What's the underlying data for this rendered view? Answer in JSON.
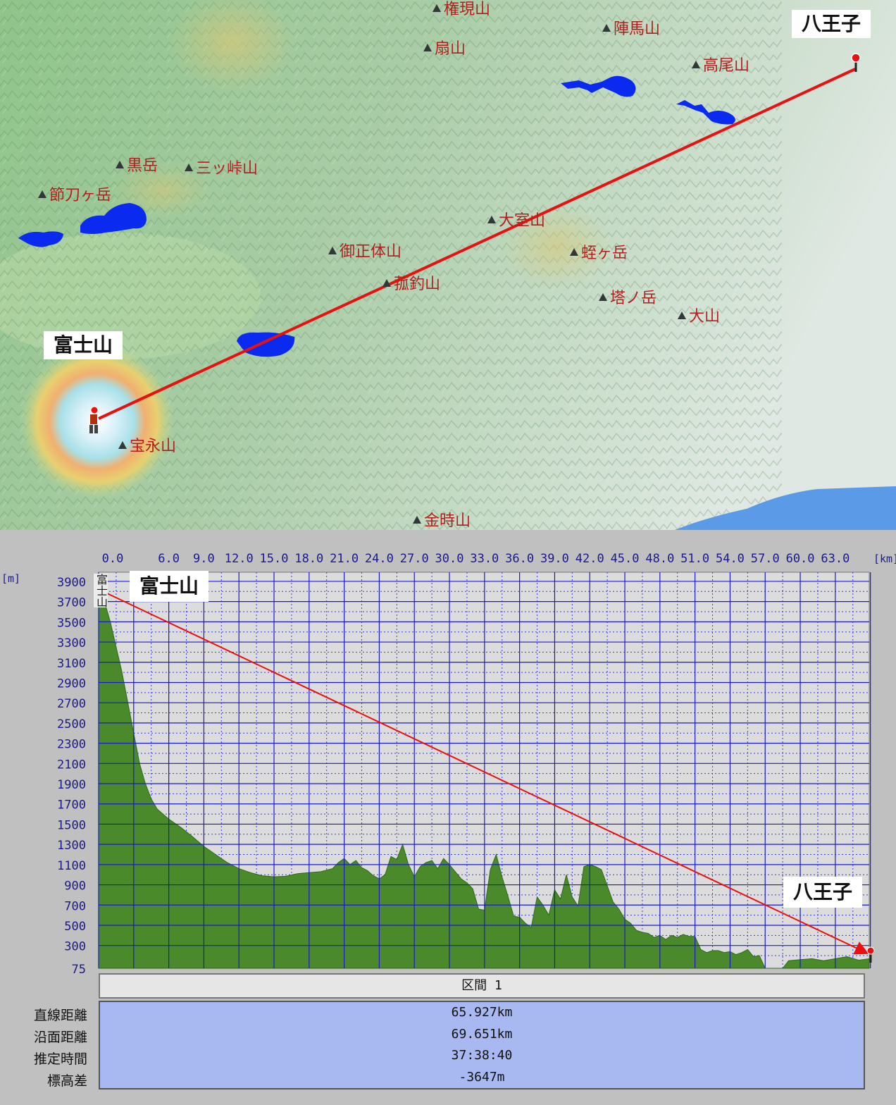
{
  "map": {
    "colors": {
      "route": "#e81010",
      "lake": "#0a2af0",
      "sea": "#5a9ae6",
      "label": "#b02020"
    },
    "start_label": "富士山",
    "end_label": "八王子",
    "peaks": [
      {
        "name": "権現山"
      },
      {
        "name": "扇山"
      },
      {
        "name": "陣馬山"
      },
      {
        "name": "高尾山"
      },
      {
        "name": "黒岳"
      },
      {
        "name": "三ッ峠山"
      },
      {
        "name": "節刀ヶ岳"
      },
      {
        "name": "大室山"
      },
      {
        "name": "御正体山"
      },
      {
        "name": "蛭ヶ岳"
      },
      {
        "name": "菰釣山"
      },
      {
        "name": "塔ノ岳"
      },
      {
        "name": "大山"
      },
      {
        "name": "宝永山"
      },
      {
        "name": "金時山"
      }
    ]
  },
  "profile": {
    "start_label": "富士山",
    "end_label": "八王子",
    "vertical_start_label": "富士山",
    "x_unit": "[km]",
    "y_unit": "[m]",
    "colors": {
      "terrain": "#4a8a2a",
      "grid": "#1a1acc",
      "bg": "#dcdcdc",
      "arrow": "#e81010"
    },
    "x_ticks": [
      "0.0",
      "6.0",
      "9.0",
      "12.0",
      "15.0",
      "18.0",
      "21.0",
      "24.0",
      "27.0",
      "30.0",
      "33.0",
      "36.0",
      "39.0",
      "42.0",
      "45.0",
      "48.0",
      "51.0",
      "54.0",
      "57.0",
      "60.0",
      "63.0"
    ],
    "y_ticks": [
      "3900",
      "3700",
      "3500",
      "3300",
      "3100",
      "2900",
      "2700",
      "2500",
      "2300",
      "2100",
      "1900",
      "1700",
      "1500",
      "1300",
      "1100",
      "900",
      "700",
      "500",
      "300",
      "75"
    ]
  },
  "segment": {
    "header": "区間 1",
    "rows": [
      {
        "label": "直線距離",
        "value": "65.927km"
      },
      {
        "label": "沿面距離",
        "value": "69.651km"
      },
      {
        "label": "推定時間",
        "value": "37:38:40"
      },
      {
        "label": "標高差",
        "value": "-3647m"
      }
    ]
  },
  "chart_data": {
    "type": "area",
    "xlabel": "[km]",
    "ylabel": "[m]",
    "xlim": [
      0,
      65.9
    ],
    "ylim": [
      75,
      3990
    ],
    "series": [
      {
        "x": [
          0,
          0.5,
          1,
          1.5,
          2,
          2.5,
          3,
          3.5,
          4,
          4.5,
          5,
          5.5,
          6,
          7,
          8,
          9,
          10,
          11,
          12,
          13,
          14,
          15,
          16,
          17,
          18,
          19,
          20,
          20.5,
          21,
          21.5,
          22,
          22.5,
          23,
          23.5,
          24,
          24.5,
          25,
          25.5,
          26,
          26.5,
          27,
          27.5,
          28,
          28.5,
          29,
          29.5,
          30,
          30.5,
          31,
          31.5,
          32,
          32.5,
          33,
          33.5,
          34,
          34.5,
          35,
          35.5,
          36,
          36.5,
          37,
          37.5,
          38,
          38.5,
          39,
          39.5,
          40,
          40.5,
          41,
          41.5,
          42,
          42.5,
          43,
          43.5,
          44,
          44.5,
          45,
          45.5,
          46,
          46.5,
          47,
          47.5,
          48,
          48.5,
          49,
          49.5,
          50,
          50.5,
          51,
          51.5,
          52,
          52.5,
          53,
          53.5,
          54,
          54.5,
          55,
          55.5,
          56,
          56.5,
          57,
          57.5,
          58,
          58.5,
          59,
          60,
          61,
          62,
          63,
          64,
          65,
          65.9
        ],
        "y": [
          3850,
          3700,
          3500,
          3250,
          3000,
          2700,
          2400,
          2100,
          1900,
          1750,
          1650,
          1600,
          1550,
          1470,
          1380,
          1280,
          1200,
          1120,
          1060,
          1020,
          990,
          980,
          985,
          1010,
          1020,
          1030,
          1060,
          1120,
          1160,
          1100,
          1140,
          1070,
          1040,
          990,
          960,
          1000,
          1180,
          1150,
          1300,
          1100,
          980,
          1080,
          1120,
          1140,
          1060,
          1160,
          1100,
          1030,
          960,
          920,
          860,
          660,
          650,
          1050,
          1200,
          980,
          790,
          590,
          580,
          520,
          480,
          780,
          700,
          600,
          850,
          760,
          1000,
          780,
          690,
          1080,
          1100,
          1080,
          1050,
          890,
          730,
          660,
          560,
          520,
          450,
          430,
          420,
          380,
          400,
          360,
          400,
          380,
          410,
          390,
          390,
          260,
          230,
          250,
          250,
          230,
          240,
          210,
          230,
          260,
          190,
          200,
          75,
          75,
          75,
          75,
          150,
          160,
          170,
          150,
          170,
          190,
          155,
          170
        ]
      }
    ]
  }
}
